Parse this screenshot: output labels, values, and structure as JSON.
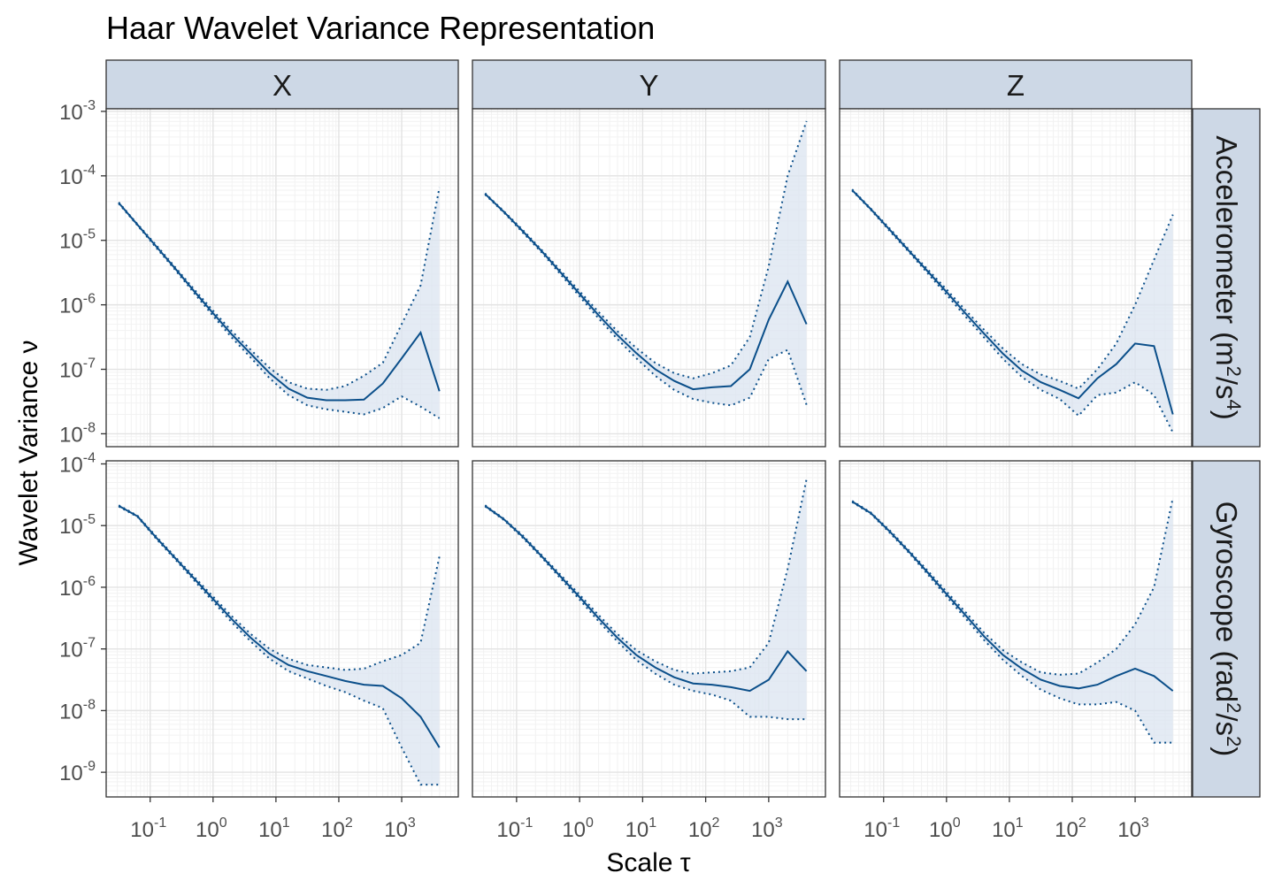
{
  "chart_data": {
    "type": "line",
    "title": "Haar Wavelet Variance Representation",
    "xlabel": "Scale τ",
    "ylabel": "Wavelet Variance ν",
    "x_scale": "log10",
    "y_scale": "log10",
    "columns": [
      "X",
      "Y",
      "Z"
    ],
    "rows": [
      {
        "label": "Accelerometer",
        "unit_base": "m",
        "unit_base_exp": "2",
        "unit_denom": "s",
        "unit_denom_exp": "4"
      },
      {
        "label": "Gyroscope",
        "unit_base": "rad",
        "unit_base_exp": "2",
        "unit_denom": "s",
        "unit_denom_exp": "2"
      }
    ],
    "x_ticks": [
      "10^-1",
      "10^0",
      "10^1",
      "10^2",
      "10^3"
    ],
    "x_tick_values": [
      -1,
      0,
      1,
      2,
      3
    ],
    "xlim_log10": [
      -1.7,
      3.9
    ],
    "y_ticks_row1": [
      "10^-8",
      "10^-7",
      "10^-6",
      "10^-5",
      "10^-4",
      "10^-3"
    ],
    "y_tick_values_row1": [
      -8,
      -7,
      -6,
      -5,
      -4,
      -3
    ],
    "ylim_log10_row1": [
      -8.2,
      -2.96
    ],
    "y_ticks_row2": [
      "10^-9",
      "10^-8",
      "10^-7",
      "10^-6",
      "10^-5",
      "10^-4"
    ],
    "y_tick_values_row2": [
      -9,
      -8,
      -7,
      -6,
      -5,
      -4
    ],
    "ylim_log10_row2": [
      -9.4,
      -3.95
    ],
    "x_log10": [
      -1.5,
      -1.2,
      -0.9,
      -0.6,
      -0.3,
      0.0,
      0.3,
      0.6,
      0.9,
      1.2,
      1.5,
      1.8,
      2.1,
      2.4,
      2.7,
      3.0,
      3.3,
      3.6
    ],
    "panels": [
      {
        "row": 1,
        "col": 1,
        "wv": [
          -4.42,
          -4.76,
          -5.1,
          -5.44,
          -5.79,
          -6.13,
          -6.46,
          -6.76,
          -7.06,
          -7.3,
          -7.44,
          -7.48,
          -7.48,
          -7.47,
          -7.22,
          -6.83,
          -6.43,
          -7.34
        ],
        "ci_low": [
          -4.43,
          -4.77,
          -5.12,
          -5.46,
          -5.82,
          -6.17,
          -6.51,
          -6.82,
          -7.14,
          -7.4,
          -7.56,
          -7.62,
          -7.66,
          -7.7,
          -7.6,
          -7.42,
          -7.58,
          -7.76
        ],
        "ci_high": [
          -4.41,
          -4.75,
          -5.08,
          -5.42,
          -5.76,
          -6.09,
          -6.41,
          -6.7,
          -6.98,
          -7.2,
          -7.3,
          -7.32,
          -7.26,
          -7.1,
          -6.9,
          -6.3,
          -5.7,
          -4.18
        ]
      },
      {
        "row": 1,
        "col": 2,
        "wv": [
          -4.28,
          -4.56,
          -4.86,
          -5.17,
          -5.5,
          -5.83,
          -6.16,
          -6.47,
          -6.75,
          -7.0,
          -7.18,
          -7.31,
          -7.28,
          -7.26,
          -7.0,
          -6.23,
          -5.64,
          -6.3
        ],
        "ci_low": [
          -4.29,
          -4.57,
          -4.88,
          -5.19,
          -5.53,
          -5.87,
          -6.21,
          -6.53,
          -6.83,
          -7.1,
          -7.32,
          -7.46,
          -7.52,
          -7.56,
          -7.44,
          -6.84,
          -6.7,
          -7.55
        ],
        "ci_high": [
          -4.27,
          -4.55,
          -4.84,
          -5.15,
          -5.47,
          -5.79,
          -6.11,
          -6.41,
          -6.67,
          -6.9,
          -7.06,
          -7.14,
          -7.06,
          -6.94,
          -6.5,
          -5.4,
          -4.0,
          -3.15
        ]
      },
      {
        "row": 1,
        "col": 3,
        "wv": [
          -4.22,
          -4.52,
          -4.84,
          -5.16,
          -5.48,
          -5.8,
          -6.13,
          -6.45,
          -6.76,
          -7.02,
          -7.2,
          -7.32,
          -7.45,
          -7.14,
          -6.92,
          -6.6,
          -6.64,
          -7.7
        ],
        "ci_low": [
          -4.23,
          -4.53,
          -4.86,
          -5.18,
          -5.51,
          -5.84,
          -6.18,
          -6.51,
          -6.84,
          -7.12,
          -7.32,
          -7.46,
          -7.72,
          -7.4,
          -7.36,
          -7.2,
          -7.4,
          -7.98
        ],
        "ci_high": [
          -4.21,
          -4.51,
          -4.82,
          -5.14,
          -5.45,
          -5.76,
          -6.08,
          -6.39,
          -6.68,
          -6.92,
          -7.08,
          -7.18,
          -7.3,
          -7.0,
          -6.6,
          -6.0,
          -5.3,
          -4.6
        ]
      },
      {
        "row": 2,
        "col": 1,
        "wv": [
          -4.68,
          -4.85,
          -5.2,
          -5.53,
          -5.86,
          -6.19,
          -6.52,
          -6.82,
          -7.08,
          -7.26,
          -7.36,
          -7.44,
          -7.52,
          -7.58,
          -7.6,
          -7.8,
          -8.1,
          -8.6
        ],
        "ci_low": [
          -4.69,
          -4.86,
          -5.22,
          -5.55,
          -5.89,
          -6.23,
          -6.57,
          -6.88,
          -7.16,
          -7.36,
          -7.48,
          -7.6,
          -7.7,
          -7.84,
          -7.96,
          -8.6,
          -9.2,
          -9.2
        ],
        "ci_high": [
          -4.67,
          -4.84,
          -5.18,
          -5.51,
          -5.83,
          -6.15,
          -6.47,
          -6.76,
          -7.0,
          -7.16,
          -7.26,
          -7.3,
          -7.34,
          -7.32,
          -7.2,
          -7.1,
          -6.9,
          -5.5
        ]
      },
      {
        "row": 2,
        "col": 2,
        "wv": [
          -4.68,
          -4.9,
          -5.18,
          -5.5,
          -5.83,
          -6.16,
          -6.5,
          -6.82,
          -7.1,
          -7.3,
          -7.46,
          -7.56,
          -7.58,
          -7.62,
          -7.68,
          -7.5,
          -7.04,
          -7.36
        ],
        "ci_low": [
          -4.69,
          -4.91,
          -5.2,
          -5.52,
          -5.86,
          -6.2,
          -6.55,
          -6.88,
          -7.18,
          -7.4,
          -7.58,
          -7.68,
          -7.74,
          -7.84,
          -8.1,
          -8.1,
          -8.14,
          -8.14
        ],
        "ci_high": [
          -4.67,
          -4.89,
          -5.16,
          -5.48,
          -5.8,
          -6.12,
          -6.45,
          -6.76,
          -7.02,
          -7.2,
          -7.34,
          -7.4,
          -7.38,
          -7.36,
          -7.3,
          -6.9,
          -5.7,
          -4.25
        ]
      },
      {
        "row": 2,
        "col": 3,
        "wv": [
          -4.61,
          -4.8,
          -5.1,
          -5.42,
          -5.76,
          -6.11,
          -6.45,
          -6.8,
          -7.1,
          -7.32,
          -7.5,
          -7.6,
          -7.64,
          -7.58,
          -7.44,
          -7.32,
          -7.44,
          -7.68
        ],
        "ci_low": [
          -4.62,
          -4.81,
          -5.12,
          -5.44,
          -5.79,
          -6.15,
          -6.5,
          -6.86,
          -7.18,
          -7.44,
          -7.66,
          -7.8,
          -7.9,
          -7.9,
          -7.86,
          -8.0,
          -8.52,
          -8.52
        ],
        "ci_high": [
          -4.6,
          -4.79,
          -5.08,
          -5.4,
          -5.73,
          -6.07,
          -6.4,
          -6.74,
          -7.02,
          -7.22,
          -7.38,
          -7.42,
          -7.4,
          -7.22,
          -7.0,
          -6.6,
          -6.0,
          -4.55
        ]
      }
    ],
    "line_color": "#0b4f8a",
    "band_fill": "#dbe4f0",
    "strip_fill": "#cdd8e6",
    "grid": true,
    "legend": "none"
  }
}
